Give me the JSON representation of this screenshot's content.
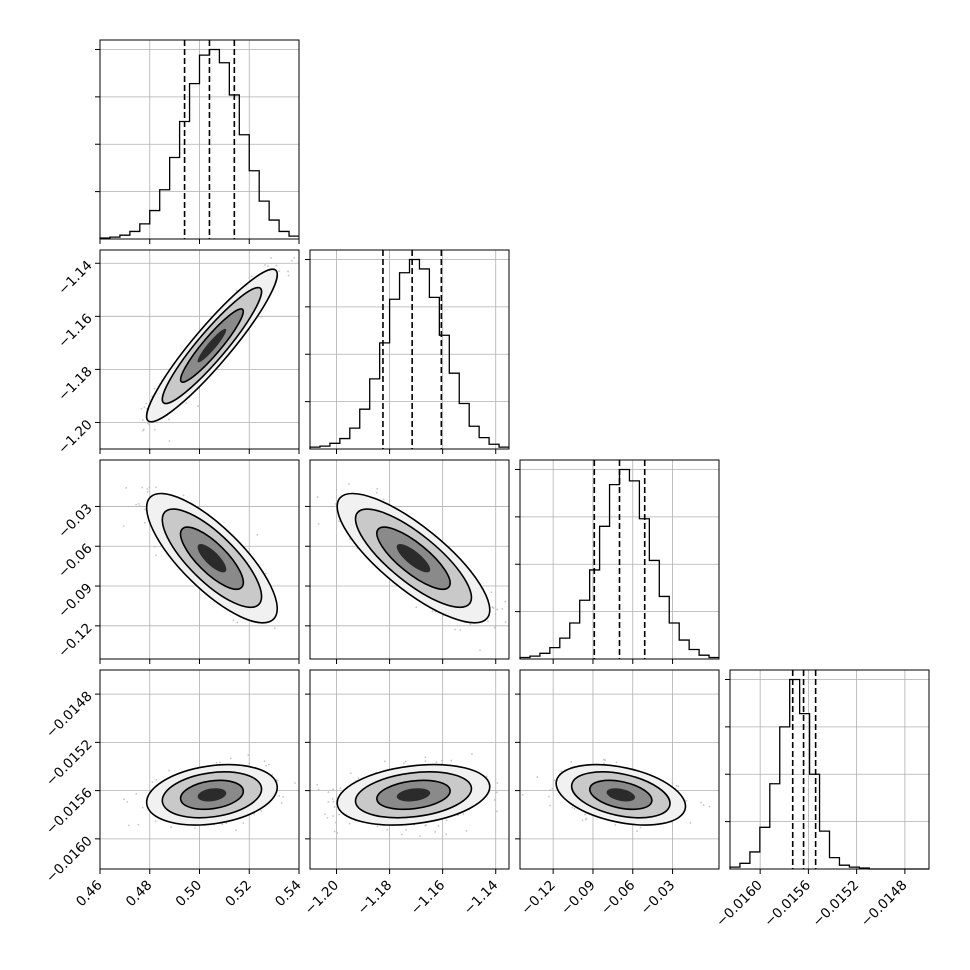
{
  "colors": {
    "axes": "#000000",
    "grid": "#b0b0b0",
    "hist": "#000000",
    "points": "#b8b8b8",
    "quantile": "#000000"
  },
  "chart_data": {
    "type": "corner",
    "title": "",
    "parameters": [
      {
        "label": "",
        "range": [
          0.46,
          0.54
        ],
        "ticks": [
          "0.46",
          "0.48",
          "0.50",
          "0.52",
          "0.54"
        ],
        "tick_values": [
          0.46,
          0.48,
          0.5,
          0.52,
          0.54
        ],
        "quantiles": [
          0.494,
          0.504,
          0.514
        ],
        "mean": 0.505,
        "sd": 0.0105
      },
      {
        "label": "",
        "range": [
          -1.21,
          -1.135
        ],
        "ticks": [
          "-1.20",
          "-1.18",
          "-1.16",
          "-1.14"
        ],
        "tick_values": [
          -1.2,
          -1.18,
          -1.16,
          -1.14
        ],
        "quantiles": [
          -1.1825,
          -1.1715,
          -1.1605
        ],
        "mean": -1.171,
        "sd": 0.0115
      },
      {
        "label": "",
        "range": [
          -0.145,
          0.005
        ],
        "ticks": [
          "-0.12",
          "-0.09",
          "-0.06",
          "-0.03"
        ],
        "tick_values": [
          -0.12,
          -0.09,
          -0.06,
          -0.03
        ],
        "quantiles": [
          -0.089,
          -0.07,
          -0.051
        ],
        "mean": -0.069,
        "sd": 0.0195
      },
      {
        "label": "",
        "range": [
          -0.01625,
          -0.0146
        ],
        "ticks": [
          "-0.0160",
          "-0.0156",
          "-0.0152",
          "-0.0148"
        ],
        "tick_values": [
          -0.016,
          -0.0156,
          -0.0152,
          -0.0148
        ],
        "quantiles": [
          -0.01573,
          -0.01564,
          -0.01554
        ],
        "mean": -0.015635,
        "sd": 0.0001
      }
    ],
    "histograms": [
      {
        "param": 0,
        "bins": 20,
        "counts": [
          0.5,
          1,
          2,
          4,
          8,
          15,
          26,
          43,
          62,
          82,
          97,
          100,
          93,
          76,
          55,
          36,
          20,
          10,
          4,
          1.5
        ]
      },
      {
        "param": 1,
        "bins": 20,
        "counts": [
          1,
          1.5,
          3,
          5.5,
          11,
          21,
          37,
          56,
          79,
          93,
          100,
          95,
          80,
          60,
          40,
          24,
          12,
          6,
          2.5,
          1
        ]
      },
      {
        "param": 2,
        "bins": 20,
        "counts": [
          0.8,
          1.5,
          3,
          6,
          11,
          19,
          31,
          47,
          70,
          92,
          100,
          94,
          74,
          52,
          33,
          19,
          10,
          5,
          2,
          0.8
        ]
      },
      {
        "param": 3,
        "bins": 20,
        "counts": [
          1,
          3,
          9,
          22,
          45,
          75,
          100,
          82,
          50,
          20,
          6,
          2,
          1,
          0.5,
          0,
          0,
          0,
          0,
          0,
          0
        ]
      }
    ],
    "pairs": [
      {
        "x": 0,
        "y": 1,
        "correlation": 0.93
      },
      {
        "x": 0,
        "y": 2,
        "correlation": -0.78
      },
      {
        "x": 1,
        "y": 2,
        "correlation": -0.8
      },
      {
        "x": 0,
        "y": 3,
        "correlation": 0.25
      },
      {
        "x": 1,
        "y": 3,
        "correlation": 0.27
      },
      {
        "x": 2,
        "y": 3,
        "correlation": -0.38
      }
    ],
    "quantile_style": "dashed",
    "grid": true,
    "legend": "none"
  }
}
